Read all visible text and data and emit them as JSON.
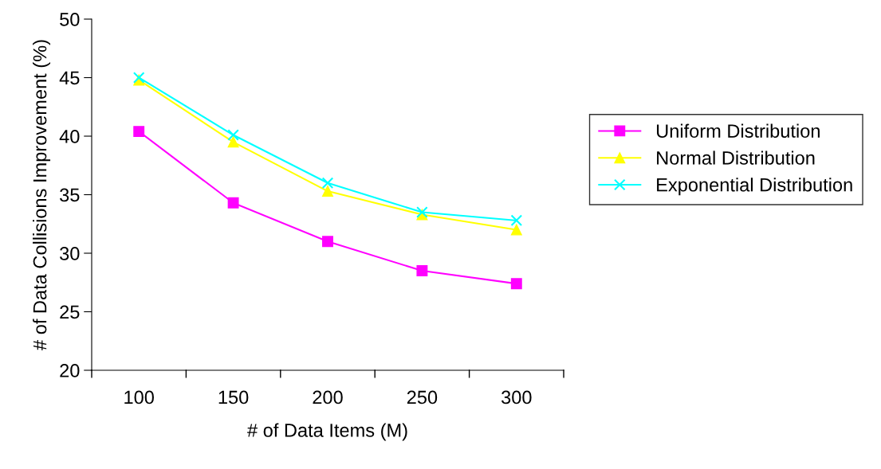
{
  "chart_data": {
    "type": "line",
    "xlabel": "# of Data Items (M)",
    "ylabel": "# of Data Collisions Improvement (%)",
    "categories": [
      "100",
      "150",
      "200",
      "250",
      "300"
    ],
    "series": [
      {
        "name": "Uniform Distribution",
        "color": "#ff00ff",
        "marker": "square",
        "values": [
          40.4,
          34.3,
          31.0,
          28.5,
          27.4
        ]
      },
      {
        "name": "Normal Distribution",
        "color": "#ffff00",
        "marker": "triangle",
        "values": [
          44.8,
          39.5,
          35.3,
          33.3,
          32.0
        ]
      },
      {
        "name": "Exponential Distribution",
        "color": "#00ffff",
        "marker": "cross",
        "values": [
          45.0,
          40.1,
          36.0,
          33.5,
          32.8
        ]
      }
    ],
    "ylim": [
      20,
      50
    ],
    "yticks": [
      20,
      25,
      30,
      35,
      40,
      45,
      50
    ],
    "grid": false,
    "legend": "right",
    "line_style": "solid"
  }
}
